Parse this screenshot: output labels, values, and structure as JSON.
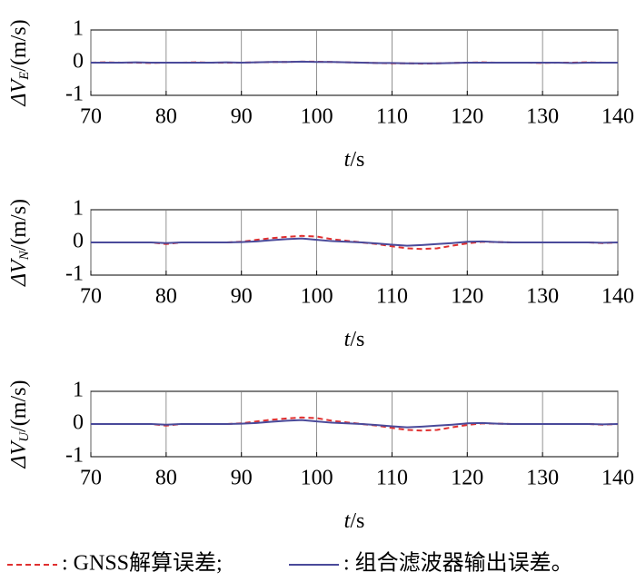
{
  "chart_data": [
    {
      "type": "line",
      "ylabel": [
        "ΔV",
        "E",
        "/(m/s)"
      ],
      "xlabel": [
        "t",
        "/s"
      ],
      "xlim": [
        70,
        140
      ],
      "xticks": [
        70,
        80,
        90,
        100,
        110,
        120,
        130,
        140
      ],
      "ylim": [
        -1,
        1
      ],
      "yticks": [
        -1,
        0,
        1
      ],
      "xgrid": true,
      "x": [
        70,
        72,
        74,
        76,
        78,
        80,
        82,
        84,
        86,
        88,
        90,
        92,
        94,
        96,
        98,
        100,
        102,
        104,
        106,
        108,
        110,
        112,
        114,
        116,
        118,
        120,
        122,
        124,
        126,
        128,
        130,
        132,
        134,
        136,
        138,
        140
      ],
      "series": [
        {
          "color": "#e03030",
          "dash": true,
          "values": [
            0,
            0.01,
            0,
            0,
            -0.01,
            0,
            0,
            0.01,
            0,
            0,
            0,
            0.01,
            0.02,
            0.02,
            0.03,
            0.03,
            0.02,
            0.01,
            0,
            -0.01,
            -0.02,
            -0.02,
            -0.03,
            -0.02,
            -0.01,
            0,
            0.01,
            0,
            0,
            0,
            -0.01,
            0,
            0,
            0.01,
            0,
            0
          ]
        },
        {
          "color": "#4a4a9a",
          "dash": false,
          "values": [
            0,
            0,
            0,
            0.01,
            0,
            0,
            0,
            0,
            0,
            0.01,
            0,
            0.01,
            0.02,
            0.02,
            0.03,
            0.02,
            0.02,
            0.01,
            0,
            -0.01,
            -0.01,
            -0.02,
            -0.02,
            -0.02,
            -0.01,
            0,
            0,
            0,
            0,
            0,
            0,
            0,
            -0.01,
            0,
            0,
            0
          ]
        }
      ]
    },
    {
      "type": "line",
      "ylabel": [
        "ΔV",
        "N",
        "/(m/s)"
      ],
      "xlabel": [
        "t",
        "/s"
      ],
      "xlim": [
        70,
        140
      ],
      "xticks": [
        70,
        80,
        90,
        100,
        110,
        120,
        130,
        140
      ],
      "ylim": [
        -1,
        1
      ],
      "yticks": [
        -1,
        0,
        1
      ],
      "xgrid": true,
      "x": [
        70,
        72,
        74,
        76,
        78,
        80,
        82,
        84,
        86,
        88,
        90,
        92,
        94,
        96,
        98,
        100,
        102,
        104,
        106,
        108,
        110,
        112,
        114,
        116,
        118,
        120,
        122,
        124,
        126,
        128,
        130,
        132,
        134,
        136,
        138,
        140
      ],
      "series": [
        {
          "color": "#e03030",
          "dash": true,
          "values": [
            0,
            0,
            0,
            0,
            0,
            -0.05,
            0,
            0,
            0,
            0,
            0.02,
            0.08,
            0.13,
            0.17,
            0.2,
            0.18,
            0.1,
            0.05,
            0,
            -0.05,
            -0.12,
            -0.18,
            -0.2,
            -0.18,
            -0.1,
            -0.03,
            0.02,
            0.01,
            0,
            0,
            0,
            0,
            0,
            0,
            -0.02,
            0
          ]
        },
        {
          "color": "#4a4a9a",
          "dash": false,
          "values": [
            0,
            0,
            0,
            0,
            0,
            -0.02,
            0,
            0,
            0,
            0,
            0.01,
            0.03,
            0.07,
            0.1,
            0.12,
            0.08,
            0.04,
            0.02,
            0,
            -0.03,
            -0.07,
            -0.1,
            -0.08,
            -0.05,
            -0.02,
            0.02,
            0.03,
            0.01,
            0,
            0,
            0,
            0,
            0,
            0,
            -0.01,
            0
          ]
        }
      ]
    },
    {
      "type": "line",
      "ylabel": [
        "ΔV",
        "U",
        "/(m/s)"
      ],
      "xlabel": [
        "t",
        "/s"
      ],
      "xlim": [
        70,
        140
      ],
      "xticks": [
        70,
        80,
        90,
        100,
        110,
        120,
        130,
        140
      ],
      "ylim": [
        -1,
        1
      ],
      "yticks": [
        -1,
        0,
        1
      ],
      "xgrid": true,
      "x": [
        70,
        72,
        74,
        76,
        78,
        80,
        82,
        84,
        86,
        88,
        90,
        92,
        94,
        96,
        98,
        100,
        102,
        104,
        106,
        108,
        110,
        112,
        114,
        116,
        118,
        120,
        122,
        124,
        126,
        128,
        130,
        132,
        134,
        136,
        138,
        140
      ],
      "series": [
        {
          "name": ": GNSS解算误差;",
          "color": "#e03030",
          "dash": true,
          "values": [
            0,
            0,
            0,
            0,
            0,
            -0.05,
            0,
            0,
            0,
            0,
            0.02,
            0.08,
            0.13,
            0.17,
            0.2,
            0.18,
            0.1,
            0.05,
            0,
            -0.05,
            -0.12,
            -0.18,
            -0.2,
            -0.18,
            -0.1,
            -0.03,
            0.02,
            0.01,
            0,
            0,
            0,
            0,
            0,
            0,
            -0.02,
            0
          ]
        },
        {
          "name": ": 组合滤波器输出误差。",
          "color": "#4a4a9a",
          "dash": false,
          "values": [
            0,
            0,
            0,
            0,
            0,
            -0.02,
            0,
            0,
            0,
            0,
            0.01,
            0.03,
            0.07,
            0.1,
            0.12,
            0.08,
            0.04,
            0.02,
            0,
            -0.03,
            -0.07,
            -0.1,
            -0.08,
            -0.05,
            -0.02,
            0.02,
            0.03,
            0.01,
            0,
            0,
            0,
            0,
            0,
            0,
            -0.01,
            0
          ]
        }
      ]
    }
  ]
}
